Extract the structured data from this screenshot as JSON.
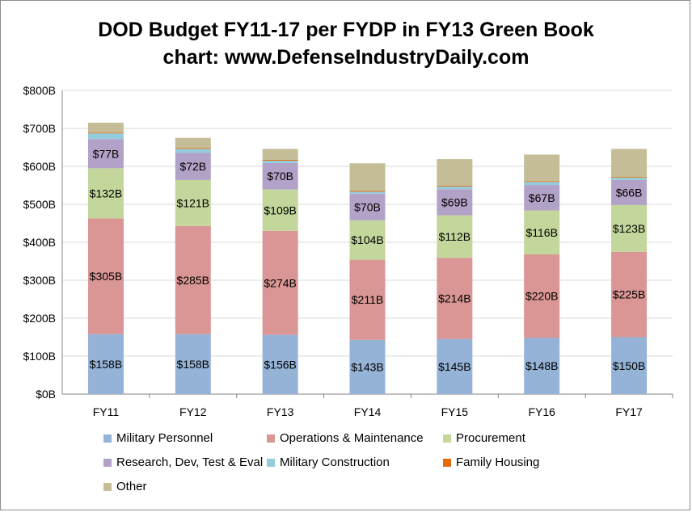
{
  "title_line1": "DOD Budget FY11-17 per FYDP in FY13 Green Book",
  "title_line2": "chart: www.DefenseIndustryDaily.com",
  "chart_data": {
    "type": "bar",
    "stacked": true,
    "categories": [
      "FY11",
      "FY12",
      "FY13",
      "FY14",
      "FY15",
      "FY16",
      "FY17"
    ],
    "y_ticks": [
      "$0B",
      "$100B",
      "$200B",
      "$300B",
      "$400B",
      "$500B",
      "$600B",
      "$700B",
      "$800B"
    ],
    "ylim": [
      0,
      800
    ],
    "grid": true,
    "legend_position": "bottom",
    "series": [
      {
        "name": "Military Personnel",
        "color": "#95b3d7",
        "values": [
          158,
          158,
          156,
          143,
          145,
          148,
          150
        ],
        "labels": [
          "$158B",
          "$158B",
          "$156B",
          "$143B",
          "$145B",
          "$148B",
          "$150B"
        ]
      },
      {
        "name": "Operations & Maintenance",
        "color": "#d99694",
        "values": [
          305,
          285,
          274,
          211,
          214,
          220,
          225
        ],
        "labels": [
          "$305B",
          "$285B",
          "$274B",
          "$211B",
          "$214B",
          "$220B",
          "$225B"
        ]
      },
      {
        "name": "Procurement",
        "color": "#c3d69b",
        "values": [
          132,
          121,
          109,
          104,
          112,
          116,
          123
        ],
        "labels": [
          "$132B",
          "$121B",
          "$109B",
          "$104B",
          "$112B",
          "$116B",
          "$123B"
        ]
      },
      {
        "name": "Research, Dev, Test & Eval",
        "color": "#b3a2c7",
        "values": [
          77,
          72,
          70,
          70,
          69,
          67,
          66
        ],
        "labels": [
          "$77B",
          "$72B",
          "$70B",
          "$70B",
          "$69B",
          "$67B",
          "$66B"
        ]
      },
      {
        "name": "Military Construction",
        "color": "#93cddd",
        "values": [
          15,
          10,
          6,
          5,
          7,
          8,
          6
        ],
        "labels": []
      },
      {
        "name": "Family Housing",
        "color": "#e46c0a",
        "values": [
          2,
          2,
          2,
          2,
          2,
          2,
          2
        ],
        "labels": []
      },
      {
        "name": "Other",
        "color": "#c4bd97",
        "values": [
          26,
          27,
          29,
          73,
          70,
          70,
          74
        ],
        "labels": []
      }
    ]
  }
}
